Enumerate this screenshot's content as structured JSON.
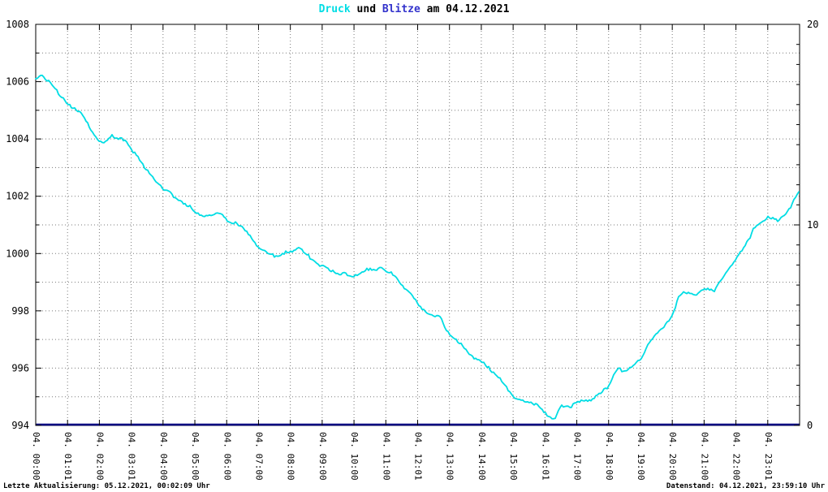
{
  "title_parts": {
    "druck": "Druck",
    "mid": " und ",
    "blitze": "Blitze",
    "rest": " am 04.12.2021"
  },
  "footer": {
    "left": "Letzte Aktualisierung: 05.12.2021, 00:02:09 Uhr",
    "right": "Datenstand: 04.12.2021, 23:59:10 Uhr"
  },
  "colors": {
    "druck": "#00dde4",
    "blitze_title": "#3333cc",
    "blitze_line": "#000080",
    "axis": "#000000",
    "grid": "#7a7a7a"
  },
  "chart_data": {
    "type": "line",
    "title": "Druck und Blitze am 04.12.2021",
    "grid": true,
    "legend_position": "in-title",
    "x_axis": {
      "range_hours": [
        0,
        24
      ],
      "tick_labels": [
        "04. 00:00",
        "04. 01:01",
        "04. 02:00",
        "04. 03:01",
        "04. 04:00",
        "04. 05:00",
        "04. 06:00",
        "04. 07:00",
        "04. 08:00",
        "04. 09:00",
        "04. 10:00",
        "04. 11:00",
        "04. 12:01",
        "04. 13:00",
        "04. 14:00",
        "04. 15:00",
        "04. 16:01",
        "04. 17:00",
        "04. 18:00",
        "04. 19:00",
        "04. 20:00",
        "04. 21:00",
        "04. 22:00",
        "04. 23:01"
      ]
    },
    "y_left": {
      "min": 994,
      "max": 1008,
      "label_step": 2,
      "grid_step": 1,
      "tick_labels": [
        994,
        996,
        998,
        1000,
        1002,
        1004,
        1006,
        1008
      ]
    },
    "y_right": {
      "min": 0,
      "max": 20,
      "tick_labels": [
        0,
        10,
        20
      ]
    },
    "series": [
      {
        "name": "Druck",
        "axis": "left",
        "color": "#00dde4",
        "points": [
          [
            0,
            1006.1
          ],
          [
            0.2,
            1006.3
          ],
          [
            0.5,
            1005.9
          ],
          [
            0.8,
            1005.5
          ],
          [
            1,
            1005.3
          ],
          [
            1.5,
            1004.9
          ],
          [
            1.9,
            1004.1
          ],
          [
            2.1,
            1003.9
          ],
          [
            2.4,
            1004.2
          ],
          [
            2.8,
            1004.0
          ],
          [
            3,
            1003.7
          ],
          [
            3.5,
            1003.0
          ],
          [
            4,
            1002.3
          ],
          [
            4.4,
            1002.0
          ],
          [
            4.7,
            1001.8
          ],
          [
            5,
            1001.5
          ],
          [
            5.4,
            1001.3
          ],
          [
            5.8,
            1001.4
          ],
          [
            6,
            1001.2
          ],
          [
            6.5,
            1001.0
          ],
          [
            7,
            1000.3
          ],
          [
            7.5,
            1000.0
          ],
          [
            8,
            1000.1
          ],
          [
            8.3,
            1000.2
          ],
          [
            8.6,
            999.8
          ],
          [
            9,
            999.6
          ],
          [
            9.5,
            999.4
          ],
          [
            10,
            999.3
          ],
          [
            10.4,
            999.5
          ],
          [
            10.9,
            999.5
          ],
          [
            11.3,
            999.2
          ],
          [
            11.6,
            998.8
          ],
          [
            12,
            998.2
          ],
          [
            12.3,
            997.8
          ],
          [
            12.7,
            997.7
          ],
          [
            13,
            997.1
          ],
          [
            13.5,
            996.6
          ],
          [
            14,
            996.2
          ],
          [
            14.5,
            995.7
          ],
          [
            15,
            995.0
          ],
          [
            15.4,
            994.9
          ],
          [
            15.8,
            994.8
          ],
          [
            16.1,
            994.4
          ],
          [
            16.3,
            994.3
          ],
          [
            16.5,
            994.8
          ],
          [
            16.8,
            994.7
          ],
          [
            17,
            994.9
          ],
          [
            17.5,
            995.0
          ],
          [
            18,
            995.3
          ],
          [
            18.3,
            996.0
          ],
          [
            18.5,
            995.8
          ],
          [
            19,
            996.4
          ],
          [
            19.4,
            997.1
          ],
          [
            19.7,
            997.5
          ],
          [
            20,
            997.9
          ],
          [
            20.2,
            998.6
          ],
          [
            20.5,
            998.7
          ],
          [
            20.8,
            998.5
          ],
          [
            21,
            998.7
          ],
          [
            21.3,
            998.6
          ],
          [
            21.6,
            999.1
          ],
          [
            22,
            999.7
          ],
          [
            22.3,
            1000.2
          ],
          [
            22.6,
            1000.9
          ],
          [
            23,
            1001.2
          ],
          [
            23.3,
            1001.1
          ],
          [
            23.6,
            1001.4
          ],
          [
            23.85,
            1001.8
          ],
          [
            24,
            1002.1
          ]
        ]
      },
      {
        "name": "Blitze",
        "axis": "right",
        "color": "#000080",
        "points": [
          [
            0,
            0
          ],
          [
            24,
            0
          ]
        ]
      }
    ]
  }
}
